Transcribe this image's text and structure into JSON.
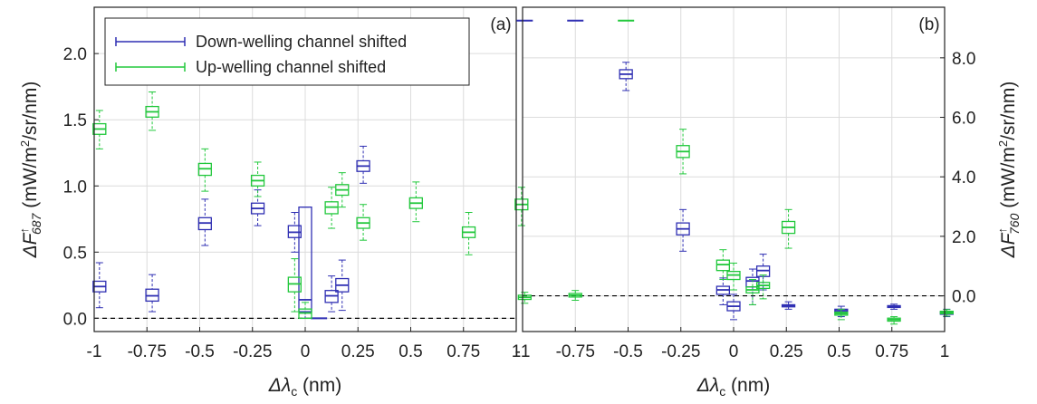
{
  "colors": {
    "down": "#2f2fb3",
    "up": "#22c83c"
  },
  "legend": {
    "down": "Down-welling channel shifted",
    "up": "Up-welling channel shifted"
  },
  "xlabel": {
    "prefix": "Δλ",
    "sub": "c",
    "suffix": " (nm)"
  },
  "chart_data": [
    {
      "type": "box",
      "panel_label": "(a)",
      "ylabel": {
        "main": "ΔF",
        "sup": "↑",
        "sub": "687",
        "units": " (mW/m",
        "units_sup": "2",
        "units_end": "/sr/nm)"
      },
      "xlim": [
        -1.0,
        1.0
      ],
      "ylim": [
        -0.1,
        2.35
      ],
      "xticks": [
        -1,
        -0.75,
        -0.5,
        -0.25,
        0,
        0.25,
        0.5,
        0.75,
        1
      ],
      "xtick_labels": [
        "-1",
        "-0.75",
        "-0.5",
        "-0.25",
        "0",
        "0.25",
        "0.5",
        "0.75",
        "1"
      ],
      "yticks": [
        0.0,
        0.5,
        1.0,
        1.5,
        2.0
      ],
      "ytick_labels": [
        "0.0",
        "0.5",
        "1.0",
        "1.5",
        "2.0"
      ],
      "grid": true,
      "legend_position": "top-left",
      "series": [
        {
          "key": "down",
          "boxes": [
            {
              "x": -0.975,
              "q1": 0.2,
              "median": 0.24,
              "q3": 0.28,
              "lo": 0.08,
              "hi": 0.42
            },
            {
              "x": -0.725,
              "q1": 0.13,
              "median": 0.17,
              "q3": 0.22,
              "lo": 0.05,
              "hi": 0.33
            },
            {
              "x": -0.475,
              "q1": 0.67,
              "median": 0.72,
              "q3": 0.76,
              "lo": 0.55,
              "hi": 0.9
            },
            {
              "x": -0.225,
              "q1": 0.79,
              "median": 0.83,
              "q3": 0.87,
              "lo": 0.7,
              "hi": 0.97
            },
            {
              "x": -0.05,
              "q1": 0.61,
              "median": 0.65,
              "q3": 0.7,
              "lo": 0.5,
              "hi": 0.8
            },
            {
              "x": 0.0,
              "q1": 0.05,
              "median": 0.14,
              "q3": 0.84,
              "lo": 0.0,
              "hi": 0.84
            },
            {
              "x": 0.065,
              "q1": 0.0,
              "median": 0.0,
              "q3": 0.0,
              "lo": 0.0,
              "hi": 0.0
            },
            {
              "x": 0.125,
              "q1": 0.12,
              "median": 0.17,
              "q3": 0.21,
              "lo": 0.05,
              "hi": 0.32
            },
            {
              "x": 0.175,
              "q1": 0.2,
              "median": 0.25,
              "q3": 0.3,
              "lo": 0.06,
              "hi": 0.44
            },
            {
              "x": 0.275,
              "q1": 1.11,
              "median": 1.15,
              "q3": 1.19,
              "lo": 1.02,
              "hi": 1.3
            }
          ]
        },
        {
          "key": "up",
          "boxes": [
            {
              "x": -0.975,
              "q1": 1.39,
              "median": 1.43,
              "q3": 1.47,
              "lo": 1.28,
              "hi": 1.57
            },
            {
              "x": -0.725,
              "q1": 1.52,
              "median": 1.56,
              "q3": 1.6,
              "lo": 1.42,
              "hi": 1.71
            },
            {
              "x": -0.475,
              "q1": 1.08,
              "median": 1.13,
              "q3": 1.17,
              "lo": 0.96,
              "hi": 1.28
            },
            {
              "x": -0.225,
              "q1": 1.0,
              "median": 1.04,
              "q3": 1.08,
              "lo": 0.92,
              "hi": 1.18
            },
            {
              "x": -0.05,
              "q1": 0.2,
              "median": 0.26,
              "q3": 0.31,
              "lo": 0.05,
              "hi": 0.45
            },
            {
              "x": 0.0,
              "q1": 0.0,
              "median": 0.04,
              "q3": 0.07,
              "lo": 0.0,
              "hi": 0.12
            },
            {
              "x": 0.125,
              "q1": 0.79,
              "median": 0.84,
              "q3": 0.88,
              "lo": 0.68,
              "hi": 0.99
            },
            {
              "x": 0.175,
              "q1": 0.93,
              "median": 0.97,
              "q3": 1.01,
              "lo": 0.84,
              "hi": 1.1
            },
            {
              "x": 0.275,
              "q1": 0.68,
              "median": 0.72,
              "q3": 0.76,
              "lo": 0.59,
              "hi": 0.86
            },
            {
              "x": 0.525,
              "q1": 0.83,
              "median": 0.87,
              "q3": 0.91,
              "lo": 0.73,
              "hi": 1.03
            },
            {
              "x": 0.775,
              "q1": 0.61,
              "median": 0.65,
              "q3": 0.69,
              "lo": 0.48,
              "hi": 0.8
            },
            {
              "x": 1.025,
              "q1": 0.82,
              "median": 0.86,
              "q3": 0.9,
              "lo": 0.7,
              "hi": 0.99
            }
          ]
        }
      ]
    },
    {
      "type": "box",
      "panel_label": "(b)",
      "ylabel": {
        "main": "ΔF",
        "sup": "↑",
        "sub": "760",
        "units": " (mW/m",
        "units_sup": "2",
        "units_end": "/sr/nm)"
      },
      "xlim": [
        -1.0,
        1.0
      ],
      "ylim": [
        -1.2,
        9.7
      ],
      "xticks": [
        -1,
        -0.75,
        -0.5,
        -0.25,
        0,
        0.25,
        0.5,
        0.75,
        1
      ],
      "xtick_labels": [
        "-1",
        "-0.75",
        "-0.5",
        "-0.25",
        "0",
        "0.25",
        "0.5",
        "0.75",
        "1"
      ],
      "yticks": [
        0.0,
        2.0,
        4.0,
        6.0,
        8.0
      ],
      "ytick_labels": [
        "0.0",
        "2.0",
        "4.0",
        "6.0",
        "8.0"
      ],
      "grid": true,
      "legend_position": "none",
      "series": [
        {
          "key": "down",
          "boxes": [
            {
              "x": -0.99,
              "q1": 9.25,
              "median": 9.25,
              "q3": 9.25,
              "lo": 9.25,
              "hi": 9.25
            },
            {
              "x": -0.75,
              "q1": 9.25,
              "median": 9.25,
              "q3": 9.25,
              "lo": 9.25,
              "hi": 9.25
            },
            {
              "x": -0.51,
              "q1": 7.3,
              "median": 7.45,
              "q3": 7.6,
              "lo": 6.9,
              "hi": 7.85
            },
            {
              "x": -0.24,
              "q1": 2.05,
              "median": 2.25,
              "q3": 2.45,
              "lo": 1.5,
              "hi": 2.9
            },
            {
              "x": -0.05,
              "q1": 0.05,
              "median": 0.2,
              "q3": 0.32,
              "lo": -0.3,
              "hi": 0.6
            },
            {
              "x": 0.0,
              "q1": -0.5,
              "median": -0.35,
              "q3": -0.2,
              "lo": -0.8,
              "hi": 0.05
            },
            {
              "x": 0.09,
              "q1": 0.3,
              "median": 0.5,
              "q3": 0.62,
              "lo": -0.3,
              "hi": 0.9
            },
            {
              "x": 0.14,
              "q1": 0.65,
              "median": 0.85,
              "q3": 1.0,
              "lo": 0.2,
              "hi": 1.4
            },
            {
              "x": 0.26,
              "q1": -0.37,
              "median": -0.33,
              "q3": -0.3,
              "lo": -0.45,
              "hi": -0.2
            },
            {
              "x": 0.51,
              "q1": -0.55,
              "median": -0.5,
              "q3": -0.45,
              "lo": -0.7,
              "hi": -0.35
            },
            {
              "x": 0.76,
              "q1": -0.39,
              "median": -0.36,
              "q3": -0.33,
              "lo": -0.45,
              "hi": -0.28
            },
            {
              "x": 1.01,
              "q1": -0.62,
              "median": -0.58,
              "q3": -0.54,
              "lo": -0.7,
              "hi": -0.45
            }
          ]
        },
        {
          "key": "up",
          "boxes": [
            {
              "x": -0.99,
              "q1": -0.12,
              "median": -0.05,
              "q3": 0.02,
              "lo": -0.25,
              "hi": 0.12
            },
            {
              "x": -0.75,
              "q1": -0.04,
              "median": 0.02,
              "q3": 0.08,
              "lo": -0.15,
              "hi": 0.18
            },
            {
              "x": -0.51,
              "q1": 9.25,
              "median": 9.25,
              "q3": 9.25,
              "lo": 9.25,
              "hi": 9.25
            },
            {
              "x": -0.24,
              "q1": 4.65,
              "median": 4.85,
              "q3": 5.05,
              "lo": 4.1,
              "hi": 5.6
            },
            {
              "x": -0.05,
              "q1": 0.85,
              "median": 1.05,
              "q3": 1.2,
              "lo": 0.55,
              "hi": 1.55
            },
            {
              "x": 0.0,
              "q1": 0.55,
              "median": 0.7,
              "q3": 0.82,
              "lo": 0.2,
              "hi": 1.1
            },
            {
              "x": 0.09,
              "q1": 0.1,
              "median": 0.2,
              "q3": 0.3,
              "lo": -0.3,
              "hi": 0.55
            },
            {
              "x": 0.14,
              "q1": 0.25,
              "median": 0.35,
              "q3": 0.45,
              "lo": -0.1,
              "hi": 0.7
            },
            {
              "x": 0.26,
              "q1": 2.1,
              "median": 2.3,
              "q3": 2.5,
              "lo": 1.6,
              "hi": 2.9
            },
            {
              "x": 0.51,
              "q1": -0.65,
              "median": -0.6,
              "q3": -0.55,
              "lo": -0.8,
              "hi": -0.45
            },
            {
              "x": 0.76,
              "q1": -0.85,
              "median": -0.8,
              "q3": -0.75,
              "lo": -0.95,
              "hi": -0.7
            },
            {
              "x": 1.01,
              "q1": -0.6,
              "median": -0.56,
              "q3": -0.52,
              "lo": -0.68,
              "hi": -0.46
            }
          ]
        }
      ]
    }
  ]
}
